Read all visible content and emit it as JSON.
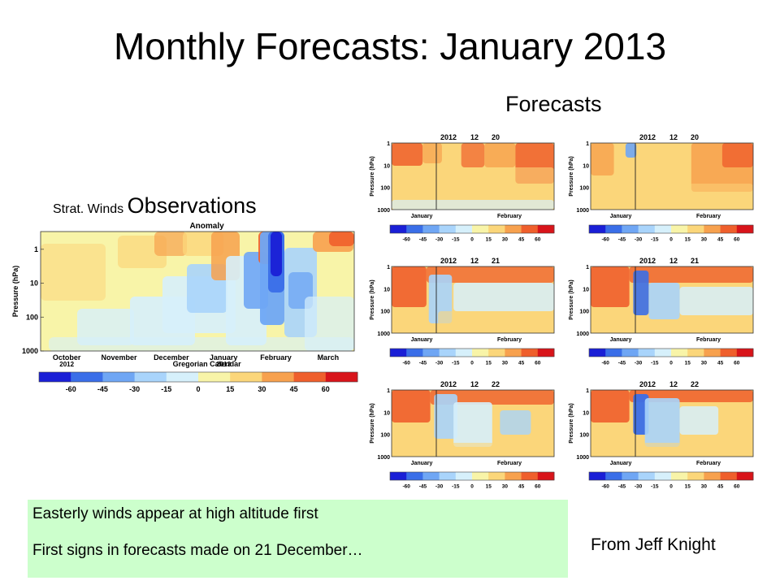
{
  "slide": {
    "title": "Monthly Forecasts: January 2013",
    "forecasts_heading": "Forecasts",
    "observations_small": "Strat. Winds",
    "observations_big": "Observations",
    "notes": [
      "Easterly winds appear at high altitude first",
      "First signs in forecasts made on 21 December…"
    ],
    "credit": "From Jeff Knight"
  },
  "chart_data": [
    {
      "type": "heatmap",
      "panel": "observations",
      "title": "Anomaly",
      "xlabel": "Gregorian Calendar",
      "ylabel": "Pressure (hPa)",
      "x_ticks": [
        "October 2012",
        "November",
        "December",
        "January 2013",
        "February",
        "March"
      ],
      "y_ticks": [
        "1",
        "10",
        "100",
        "1000"
      ],
      "y_scale": "log",
      "ylim": [
        1000,
        0.3
      ],
      "colorbar_ticks": [
        "-60",
        "-45",
        "-30",
        "-15",
        "0",
        "15",
        "30",
        "45",
        "60"
      ],
      "colormap": [
        "#1a1fd6",
        "#3a6ee8",
        "#6fa6f4",
        "#a9d4fb",
        "#d6f0fb",
        "#f8f4a8",
        "#fbd67a",
        "#f7a14e",
        "#ef5f2c",
        "#d8141a"
      ]
    },
    {
      "type": "heatmap",
      "panel": "forecast",
      "start_date": "2012 12 20",
      "date_parts": [
        "2012",
        "12",
        "20"
      ],
      "ylabel": "Pressure (hPa)",
      "x_ticks": [
        "January",
        "February"
      ],
      "y_ticks": [
        "1",
        "10",
        "100",
        "1000"
      ],
      "colorbar_ticks": [
        "-60",
        "-45",
        "-30",
        "-15",
        "0",
        "15",
        "30",
        "45",
        "60"
      ]
    },
    {
      "type": "heatmap",
      "panel": "forecast",
      "start_date": "2012 12 20",
      "date_parts": [
        "2012",
        "12",
        "20"
      ],
      "ylabel": "Pressure (hPa)",
      "x_ticks": [
        "January",
        "February"
      ],
      "y_ticks": [
        "1",
        "10",
        "100",
        "1000"
      ],
      "colorbar_ticks": [
        "-60",
        "-45",
        "-30",
        "-15",
        "0",
        "15",
        "30",
        "45",
        "60"
      ]
    },
    {
      "type": "heatmap",
      "panel": "forecast",
      "start_date": "2012 12 21",
      "date_parts": [
        "2012",
        "12",
        "21"
      ],
      "ylabel": "Pressure (hPa)",
      "x_ticks": [
        "January",
        "February"
      ],
      "y_ticks": [
        "1",
        "10",
        "100",
        "1000"
      ],
      "colorbar_ticks": [
        "-60",
        "-45",
        "-30",
        "-15",
        "0",
        "15",
        "30",
        "45",
        "60"
      ]
    },
    {
      "type": "heatmap",
      "panel": "forecast",
      "start_date": "2012 12 21",
      "date_parts": [
        "2012",
        "12",
        "21"
      ],
      "ylabel": "Pressure (hPa)",
      "x_ticks": [
        "January",
        "February"
      ],
      "y_ticks": [
        "1",
        "10",
        "100",
        "1000"
      ],
      "colorbar_ticks": [
        "-60",
        "-45",
        "-30",
        "-15",
        "0",
        "15",
        "30",
        "45",
        "60"
      ]
    },
    {
      "type": "heatmap",
      "panel": "forecast",
      "start_date": "2012 12 22",
      "date_parts": [
        "2012",
        "12",
        "22"
      ],
      "ylabel": "Pressure (hPa)",
      "x_ticks": [
        "January",
        "February"
      ],
      "y_ticks": [
        "1",
        "10",
        "100",
        "1000"
      ],
      "colorbar_ticks": [
        "-60",
        "-45",
        "-30",
        "-15",
        "0",
        "15",
        "30",
        "45",
        "60"
      ]
    },
    {
      "type": "heatmap",
      "panel": "forecast",
      "start_date": "2012 12 22",
      "date_parts": [
        "2012",
        "12",
        "22"
      ],
      "ylabel": "Pressure (hPa)",
      "x_ticks": [
        "January",
        "February"
      ],
      "y_ticks": [
        "1",
        "10",
        "100",
        "1000"
      ],
      "colorbar_ticks": [
        "-60",
        "-45",
        "-30",
        "-15",
        "0",
        "15",
        "30",
        "45",
        "60"
      ]
    }
  ]
}
